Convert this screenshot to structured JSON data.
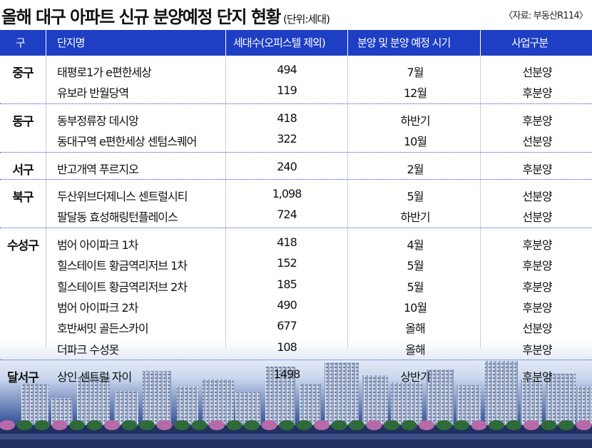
{
  "title": "올해 대구 아파트 신규 분양예정 단지 현황",
  "unit": "(단위:세대)",
  "source": "〈자료: 부동산R114〉",
  "columns": [
    "구",
    "단지명",
    "세대수(오피스텔 제외)",
    "분양 및 분양 예정 시기",
    "사업구분"
  ],
  "groups": [
    {
      "district": "중구",
      "rows": [
        {
          "name": "태평로1가 e편한세상",
          "units": "494",
          "timing": "7월",
          "type": "선분양"
        },
        {
          "name": "유보라 반월당역",
          "units": "119",
          "timing": "12월",
          "type": "후분양"
        }
      ]
    },
    {
      "district": "동구",
      "rows": [
        {
          "name": "동부정류장 데시앙",
          "units": "418",
          "timing": "하반기",
          "type": "후분양"
        },
        {
          "name": "동대구역 e편한세상 센텀스퀘어",
          "units": "322",
          "timing": "10월",
          "type": "선분양"
        }
      ]
    },
    {
      "district": "서구",
      "rows": [
        {
          "name": "반고개역 푸르지오",
          "units": "240",
          "timing": "2월",
          "type": "후분양"
        }
      ]
    },
    {
      "district": "북구",
      "rows": [
        {
          "name": "두산위브더제니스 센트럴시티",
          "units": "1,098",
          "timing": "5월",
          "type": "선분양"
        },
        {
          "name": "팔달동 효성해링턴플레이스",
          "units": "724",
          "timing": "하반기",
          "type": "선분양"
        }
      ]
    },
    {
      "district": "수성구",
      "rows": [
        {
          "name": "범어 아이파크 1차",
          "units": "418",
          "timing": "4월",
          "type": "후분양"
        },
        {
          "name": "힐스테이트 황금역리저브 1차",
          "units": "152",
          "timing": "5월",
          "type": "후분양"
        },
        {
          "name": "힐스테이트 황금역리저브 2차",
          "units": "185",
          "timing": "5월",
          "type": "후분양"
        },
        {
          "name": "범어 아이파크 2차",
          "units": "490",
          "timing": "10월",
          "type": "후분양"
        },
        {
          "name": "호반써밋 골든스카이",
          "units": "677",
          "timing": "올해",
          "type": "선분양"
        },
        {
          "name": "더파크 수성못",
          "units": "108",
          "timing": "올해",
          "type": "후분양"
        }
      ]
    },
    {
      "district": "달서구",
      "rows": [
        {
          "name": "상인 센트럴 자이",
          "units": "1498",
          "timing": "상반기",
          "type": "후분양"
        }
      ]
    }
  ],
  "colors": {
    "header_bg": "#1e3ec4",
    "separator": "#2a4fd0",
    "text": "#111111"
  }
}
